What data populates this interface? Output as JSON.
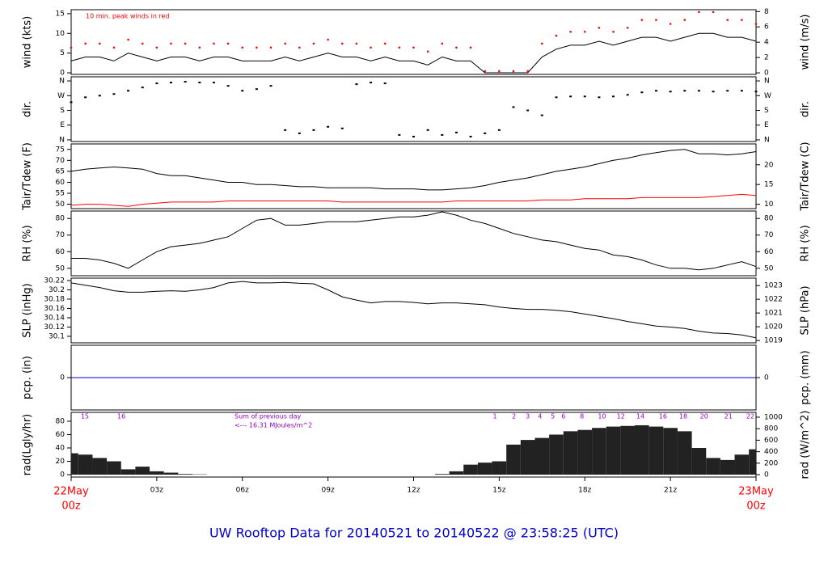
{
  "title": "UW Rooftop Data for 20140521  to  20140522 @ 23:58:25  (UTC)",
  "chart_data": [
    {
      "type": "line",
      "ylabel": "wind (kts)",
      "y2label": "wind (m/s)",
      "annotation": "10 min. peak winds in red",
      "xlim": [
        0,
        24
      ],
      "ylim": [
        -0.4,
        16.0
      ],
      "yticks": [
        0,
        5,
        10,
        15
      ],
      "y2lim": [
        -0.2,
        8.24
      ],
      "y2ticks": [
        0,
        2,
        4,
        6,
        8
      ],
      "x": [
        0,
        0.5,
        1,
        1.5,
        2,
        2.5,
        3,
        3.5,
        4,
        4.5,
        5,
        5.5,
        6,
        6.5,
        7,
        7.5,
        8,
        8.5,
        9,
        9.5,
        10,
        10.5,
        11,
        11.5,
        12,
        12.5,
        13,
        13.5,
        14,
        14.5,
        15,
        15.5,
        16,
        16.5,
        17,
        17.5,
        18,
        18.5,
        19,
        19.5,
        20,
        20.5,
        21,
        21.5,
        22,
        22.5,
        23,
        23.5,
        24
      ],
      "series": [
        {
          "color": "#000000",
          "style": "line",
          "values": [
            3,
            4,
            4,
            3,
            5,
            4,
            3,
            4,
            4,
            3,
            4,
            4,
            3,
            3,
            3,
            4,
            3,
            4,
            5,
            4,
            4,
            3,
            4,
            3,
            3,
            2,
            4,
            3,
            3,
            0,
            0,
            0,
            0,
            4,
            6,
            7,
            7,
            8,
            7,
            8,
            9,
            9,
            8,
            9,
            10,
            10,
            9,
            9,
            8
          ]
        },
        {
          "color": "#ff0000",
          "style": "points",
          "values": [
            6,
            7,
            7,
            6,
            8,
            7,
            6,
            7,
            7,
            6,
            7,
            7,
            6,
            6,
            6,
            7,
            6,
            7,
            8,
            7,
            7,
            6,
            7,
            6,
            6,
            5,
            7,
            6,
            6,
            0,
            0,
            0,
            0,
            7,
            9,
            10,
            10,
            11,
            10,
            11,
            13,
            13,
            12,
            13,
            15,
            15,
            13,
            13,
            12
          ]
        }
      ]
    },
    {
      "type": "scatter",
      "ylabel": "dir.",
      "y2label": "dir.",
      "xlim": [
        0,
        24
      ],
      "ylim": [
        -10,
        385
      ],
      "yticks": [
        {
          "value": 0,
          "label": "N"
        },
        {
          "value": 90,
          "label": "E"
        },
        {
          "value": 180,
          "label": "S"
        },
        {
          "value": 270,
          "label": "W"
        },
        {
          "value": 360,
          "label": "N"
        }
      ],
      "x": [
        0,
        0.5,
        1,
        1.5,
        2,
        2.5,
        3,
        3.5,
        4,
        4.5,
        5,
        5.5,
        6,
        6.5,
        7,
        7.5,
        8,
        8.5,
        9,
        9.5,
        10,
        10.5,
        11,
        11.5,
        12,
        12.5,
        13,
        13.5,
        14,
        14.5,
        15,
        15.5,
        16,
        16.5,
        17,
        17.5,
        18,
        18.5,
        19,
        19.5,
        20,
        20.5,
        21,
        21.5,
        22,
        22.5,
        23,
        23.5,
        24
      ],
      "series": [
        {
          "color": "#000000",
          "values": [
            230,
            260,
            270,
            280,
            300,
            320,
            345,
            350,
            355,
            350,
            350,
            330,
            300,
            310,
            330,
            60,
            40,
            60,
            80,
            70,
            340,
            350,
            345,
            30,
            20,
            60,
            30,
            45,
            20,
            40,
            60,
            200,
            180,
            150,
            260,
            265,
            265,
            260,
            265,
            275,
            290,
            300,
            295,
            300,
            300,
            295,
            300,
            300,
            295
          ]
        }
      ]
    },
    {
      "type": "line",
      "ylabel": "Tair/Tdew (F)",
      "y2label": "Tair/Tdew (C)",
      "xlim": [
        0,
        24
      ],
      "ylim": [
        48,
        77.5
      ],
      "yticks": [
        50,
        55,
        60,
        65,
        70,
        75
      ],
      "y2lim": [
        8.89,
        25.28
      ],
      "y2ticks": [
        10,
        15,
        20
      ],
      "x": [
        0,
        0.5,
        1,
        1.5,
        2,
        2.5,
        3,
        3.5,
        4,
        4.5,
        5,
        5.5,
        6,
        6.5,
        7,
        7.5,
        8,
        8.5,
        9,
        9.5,
        10,
        10.5,
        11,
        11.5,
        12,
        12.5,
        13,
        13.5,
        14,
        14.5,
        15,
        15.5,
        16,
        16.5,
        17,
        17.5,
        18,
        18.5,
        19,
        19.5,
        20,
        20.5,
        21,
        21.5,
        22,
        22.5,
        23,
        23.5,
        24
      ],
      "series": [
        {
          "color": "#000000",
          "style": "line",
          "values": [
            65,
            66,
            66.5,
            67,
            66.5,
            66,
            64,
            63,
            63,
            62,
            61,
            60,
            60,
            59,
            59,
            58.5,
            58,
            58,
            57.5,
            57.5,
            57.5,
            57.5,
            57,
            57,
            57,
            56.5,
            56.5,
            57,
            57.5,
            58.5,
            60,
            61,
            62,
            63.5,
            65,
            66,
            67,
            68.5,
            70,
            71,
            72.5,
            73.5,
            74.5,
            75,
            73,
            73,
            72.5,
            73,
            74
          ]
        },
        {
          "color": "#ff0000",
          "style": "line",
          "values": [
            49.5,
            50,
            50,
            49.5,
            49,
            50,
            50.5,
            51,
            51,
            51,
            51,
            51.5,
            51.5,
            51.5,
            51.5,
            51.5,
            51.5,
            51.5,
            51.5,
            51,
            51,
            51,
            51,
            51,
            51,
            51,
            51,
            51.5,
            51.5,
            51.5,
            51.5,
            51.5,
            51.5,
            52,
            52,
            52,
            52.5,
            52.5,
            52.5,
            52.5,
            53,
            53,
            53,
            53,
            53,
            53.5,
            54,
            54.5,
            54
          ]
        }
      ]
    },
    {
      "type": "line",
      "ylabel": "RH (%)",
      "y2label": "RH (%)",
      "xlim": [
        0,
        24
      ],
      "ylim": [
        45.5,
        84.5
      ],
      "yticks": [
        50,
        60,
        70,
        80
      ],
      "x": [
        0,
        0.5,
        1,
        1.5,
        2,
        2.5,
        3,
        3.5,
        4,
        4.5,
        5,
        5.5,
        6,
        6.5,
        7,
        7.5,
        8,
        8.5,
        9,
        9.5,
        10,
        10.5,
        11,
        11.5,
        12,
        12.5,
        13,
        13.5,
        14,
        14.5,
        15,
        15.5,
        16,
        16.5,
        17,
        17.5,
        18,
        18.5,
        19,
        19.5,
        20,
        20.5,
        21,
        21.5,
        22,
        22.5,
        23,
        23.5,
        24
      ],
      "series": [
        {
          "color": "#000000",
          "style": "line",
          "values": [
            56,
            56,
            55,
            53,
            50,
            55,
            60,
            63,
            64,
            65,
            67,
            69,
            74,
            79,
            80,
            76,
            76,
            77,
            78,
            78,
            78,
            79,
            80,
            81,
            81,
            82,
            84,
            82,
            79,
            77,
            74,
            71,
            69,
            67,
            66,
            64,
            62,
            61,
            58,
            57,
            55,
            52,
            50,
            50,
            49,
            50,
            52,
            54,
            51
          ]
        }
      ]
    },
    {
      "type": "line",
      "ylabel": "SLP (inHg)",
      "y2label": "SLP (hPa)",
      "xlim": [
        0,
        24
      ],
      "ylim": [
        30.086,
        30.2252
      ],
      "yticks": [
        30.1,
        30.12,
        30.14,
        30.16,
        30.18,
        30.2,
        30.22
      ],
      "y2lim": [
        1018.83,
        1023.54
      ],
      "y2ticks": [
        1019,
        1020,
        1021,
        1022,
        1023
      ],
      "x": [
        0,
        0.5,
        1,
        1.5,
        2,
        2.5,
        3,
        3.5,
        4,
        4.5,
        5,
        5.5,
        6,
        6.5,
        7,
        7.5,
        8,
        8.5,
        9,
        9.5,
        10,
        10.5,
        11,
        11.5,
        12,
        12.5,
        13,
        13.5,
        14,
        14.5,
        15,
        15.5,
        16,
        16.5,
        17,
        17.5,
        18,
        18.5,
        19,
        19.5,
        20,
        20.5,
        21,
        21.5,
        22,
        22.5,
        23,
        23.5,
        24
      ],
      "series": [
        {
          "color": "#000000",
          "style": "line",
          "values": [
            30.215,
            30.21,
            30.205,
            30.198,
            30.195,
            30.195,
            30.197,
            30.198,
            30.197,
            30.2,
            30.205,
            30.215,
            30.218,
            30.215,
            30.215,
            30.216,
            30.214,
            30.213,
            30.2,
            30.185,
            30.178,
            30.172,
            30.175,
            30.175,
            30.173,
            30.17,
            30.172,
            30.172,
            30.17,
            30.168,
            30.163,
            30.16,
            30.158,
            30.158,
            30.156,
            30.153,
            30.148,
            30.143,
            30.138,
            30.132,
            30.127,
            30.122,
            30.12,
            30.117,
            30.111,
            30.107,
            30.106,
            30.103,
            30.097
          ]
        }
      ]
    },
    {
      "type": "line",
      "ylabel": "pcp. (in)",
      "y2label": "pcp. (mm)",
      "xlim": [
        0,
        24
      ],
      "ylim": [
        -1,
        1
      ],
      "yticks": [
        0
      ],
      "y2lim": [
        -25.4,
        25.4
      ],
      "y2ticks": [
        0
      ],
      "x": [
        0,
        24
      ],
      "series": [
        {
          "color": "#0000cc",
          "style": "line",
          "values": [
            0,
            0
          ]
        }
      ]
    },
    {
      "type": "bar",
      "ylabel": "rad(Lgly/hr)",
      "y2label": "rad (W/m^2)",
      "annotations": [
        "Sum of previous day",
        "<--- 16.31 MJoules/m^2"
      ],
      "xlim": [
        0,
        24
      ],
      "ylim": [
        -3.6,
        93.3
      ],
      "yticks": [
        0,
        20,
        40,
        60,
        80
      ],
      "y2lim": [
        -41.8,
        1084
      ],
      "y2ticks": [
        0,
        200,
        400,
        600,
        800,
        1000
      ],
      "xticks": [
        {
          "value": 0,
          "label": "00z"
        },
        {
          "value": 3,
          "label": "03z"
        },
        {
          "value": 6,
          "label": "06z"
        },
        {
          "value": 9,
          "label": "09z"
        },
        {
          "value": 12,
          "label": "12z"
        },
        {
          "value": 15,
          "label": "15z"
        },
        {
          "value": 18,
          "label": "18z"
        },
        {
          "value": 21,
          "label": "21z"
        },
        {
          "value": 24,
          "label": "00z"
        }
      ],
      "date_labels": [
        {
          "value": 0,
          "label": "22May"
        },
        {
          "value": 24,
          "label": "23May"
        }
      ],
      "hour_labels": [
        {
          "value": 0.48,
          "label": "15"
        },
        {
          "value": 1.76,
          "label": "16"
        },
        {
          "value": 14.85,
          "label": "1"
        },
        {
          "value": 15.52,
          "label": "2"
        },
        {
          "value": 16.0,
          "label": "3"
        },
        {
          "value": 16.43,
          "label": "4"
        },
        {
          "value": 16.88,
          "label": "5"
        },
        {
          "value": 17.25,
          "label": "6"
        },
        {
          "value": 17.9,
          "label": "8"
        },
        {
          "value": 18.6,
          "label": "10"
        },
        {
          "value": 19.26,
          "label": "12"
        },
        {
          "value": 19.95,
          "label": "14"
        },
        {
          "value": 20.74,
          "label": "16"
        },
        {
          "value": 21.45,
          "label": "18"
        },
        {
          "value": 22.18,
          "label": "20"
        },
        {
          "value": 23.03,
          "label": "21"
        },
        {
          "value": 23.8,
          "label": "22"
        }
      ],
      "x": [
        0,
        0.5,
        1,
        1.5,
        2,
        2.5,
        3,
        3.5,
        4,
        4.5,
        5,
        5.5,
        6,
        6.5,
        7,
        7.5,
        8,
        8.5,
        9,
        9.5,
        10,
        10.5,
        11,
        11.5,
        12,
        12.5,
        13,
        13.5,
        14,
        14.5,
        15,
        15.5,
        16,
        16.5,
        17,
        17.5,
        18,
        18.5,
        19,
        19.5,
        20,
        20.5,
        21,
        21.5,
        22,
        22.5,
        23,
        23.5,
        24
      ],
      "series": [
        {
          "color": "#222222",
          "values": [
            32,
            30,
            25,
            20,
            8,
            12,
            5,
            3,
            1,
            0.5,
            0,
            0,
            0,
            0,
            0,
            0,
            0,
            0,
            0,
            0,
            0,
            0,
            0,
            0,
            0,
            0,
            1,
            5,
            15,
            18,
            20,
            45,
            52,
            55,
            60,
            65,
            67,
            70,
            72,
            73,
            74,
            72,
            70,
            65,
            40,
            25,
            22,
            30,
            38
          ]
        }
      ]
    }
  ]
}
